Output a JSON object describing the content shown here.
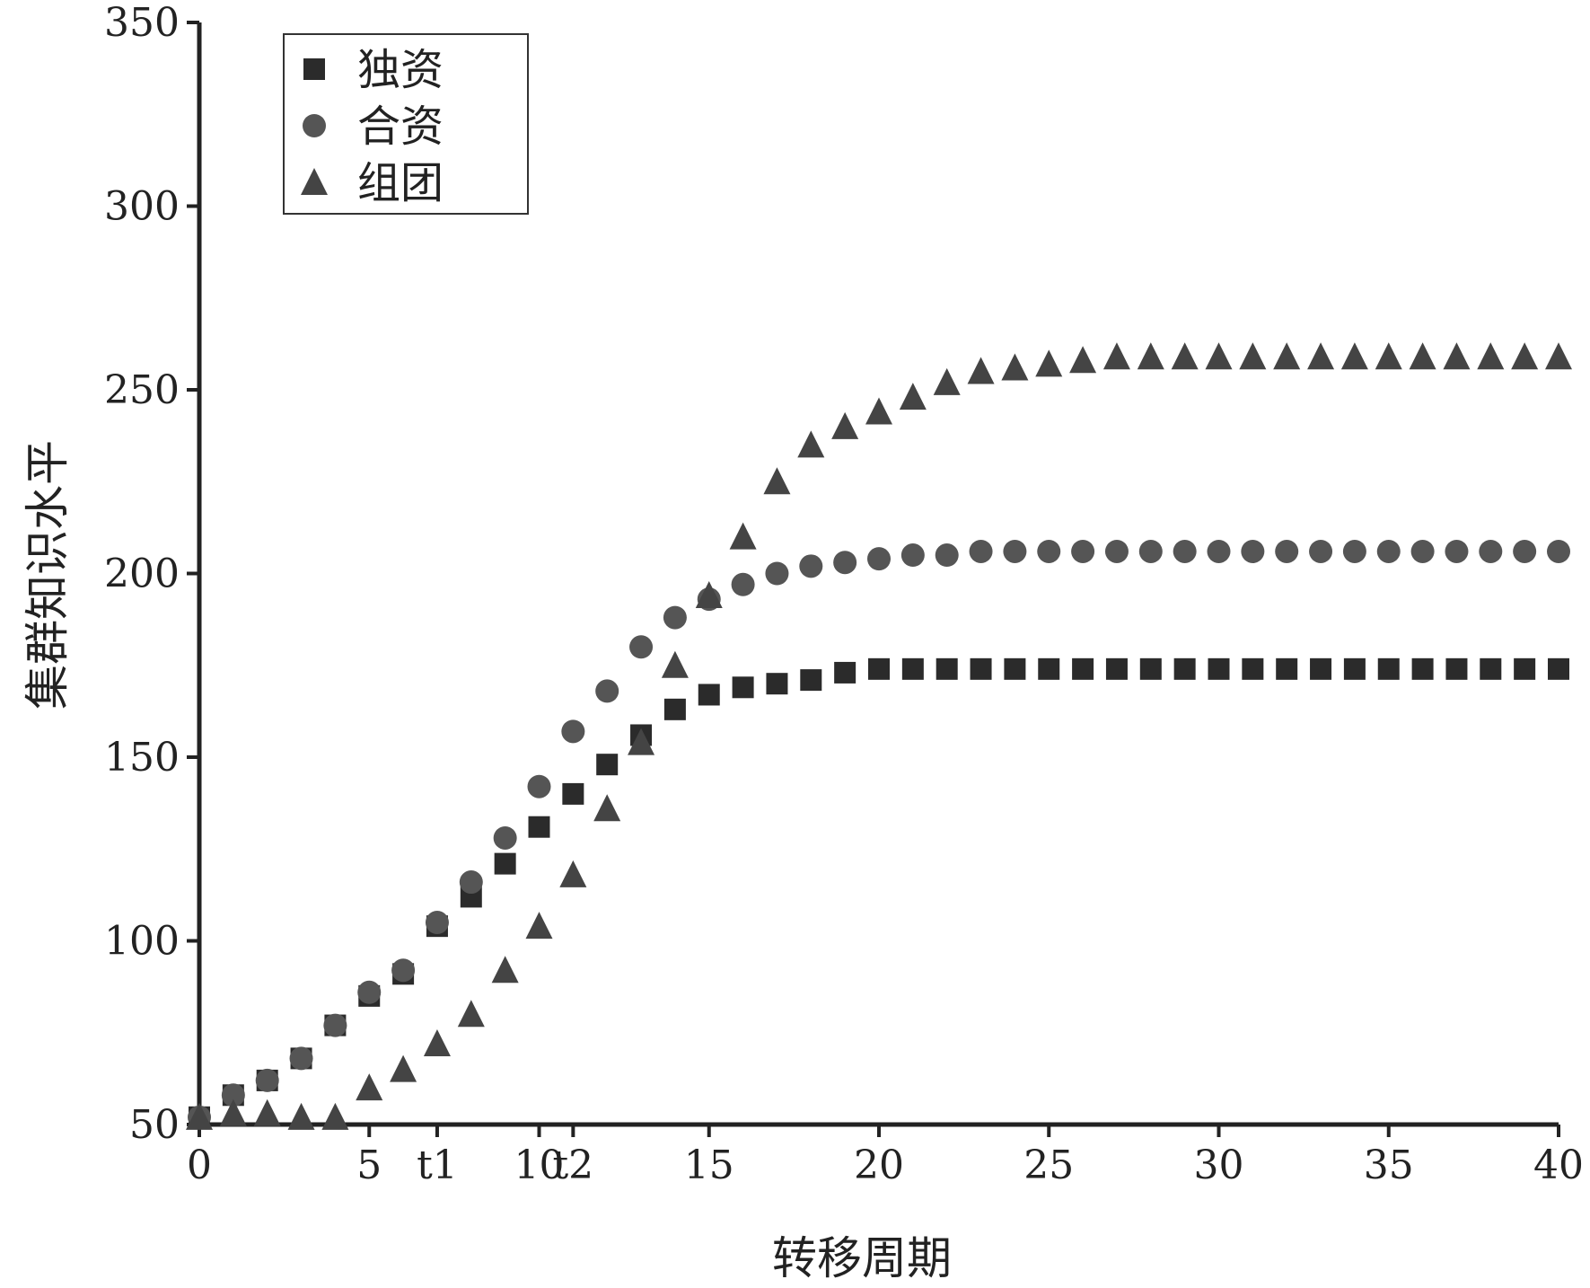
{
  "chart_data": {
    "type": "scatter",
    "title": "",
    "xlabel": "转移周期",
    "ylabel": "集群知识水平",
    "xlim": [
      0,
      40
    ],
    "ylim": [
      50,
      350
    ],
    "x_ticks": [
      {
        "value": 0,
        "label": "0"
      },
      {
        "value": 5,
        "label": "5"
      },
      {
        "value": 7,
        "label": "t1"
      },
      {
        "value": 10,
        "label": "10"
      },
      {
        "value": 11,
        "label": "t2"
      },
      {
        "value": 15,
        "label": "15"
      },
      {
        "value": 20,
        "label": "20"
      },
      {
        "value": 25,
        "label": "25"
      },
      {
        "value": 30,
        "label": "30"
      },
      {
        "value": 35,
        "label": "35"
      },
      {
        "value": 40,
        "label": "40"
      }
    ],
    "y_ticks": [
      {
        "value": 50,
        "label": "50"
      },
      {
        "value": 100,
        "label": "100"
      },
      {
        "value": 150,
        "label": "150"
      },
      {
        "value": 200,
        "label": "200"
      },
      {
        "value": 250,
        "label": "250"
      },
      {
        "value": 300,
        "label": "300"
      },
      {
        "value": 350,
        "label": "350"
      }
    ],
    "grid": false,
    "legend": "top-left",
    "x": [
      0,
      1,
      2,
      3,
      4,
      5,
      6,
      7,
      8,
      9,
      10,
      11,
      12,
      13,
      14,
      15,
      16,
      17,
      18,
      19,
      20,
      21,
      22,
      23,
      24,
      25,
      26,
      27,
      28,
      29,
      30,
      31,
      32,
      33,
      34,
      35,
      36,
      37,
      38,
      39,
      40
    ],
    "series": [
      {
        "name": "独资",
        "marker": "square",
        "color": "#2b2b2b",
        "values": [
          52,
          58,
          62,
          68,
          77,
          85,
          91,
          104,
          112,
          121,
          131,
          140,
          148,
          156,
          163,
          167,
          169,
          170,
          171,
          173,
          174,
          174,
          174,
          174,
          174,
          174,
          174,
          174,
          174,
          174,
          174,
          174,
          174,
          174,
          174,
          174,
          174,
          174,
          174,
          174,
          174
        ]
      },
      {
        "name": "合资",
        "marker": "circle",
        "color": "#555555",
        "values": [
          52,
          58,
          62,
          68,
          77,
          86,
          92,
          105,
          116,
          128,
          142,
          157,
          168,
          180,
          188,
          193,
          197,
          200,
          202,
          203,
          204,
          205,
          205,
          206,
          206,
          206,
          206,
          206,
          206,
          206,
          206,
          206,
          206,
          206,
          206,
          206,
          206,
          206,
          206,
          206,
          206
        ]
      },
      {
        "name": "组团",
        "marker": "triangle",
        "color": "#444444",
        "values": [
          52,
          53,
          53,
          52,
          52,
          60,
          65,
          72,
          80,
          92,
          104,
          118,
          136,
          154,
          175,
          194,
          210,
          225,
          235,
          240,
          244,
          248,
          252,
          255,
          256,
          257,
          258,
          259,
          259,
          259,
          259,
          259,
          259,
          259,
          259,
          259,
          259,
          259,
          259,
          259,
          259
        ]
      }
    ]
  }
}
